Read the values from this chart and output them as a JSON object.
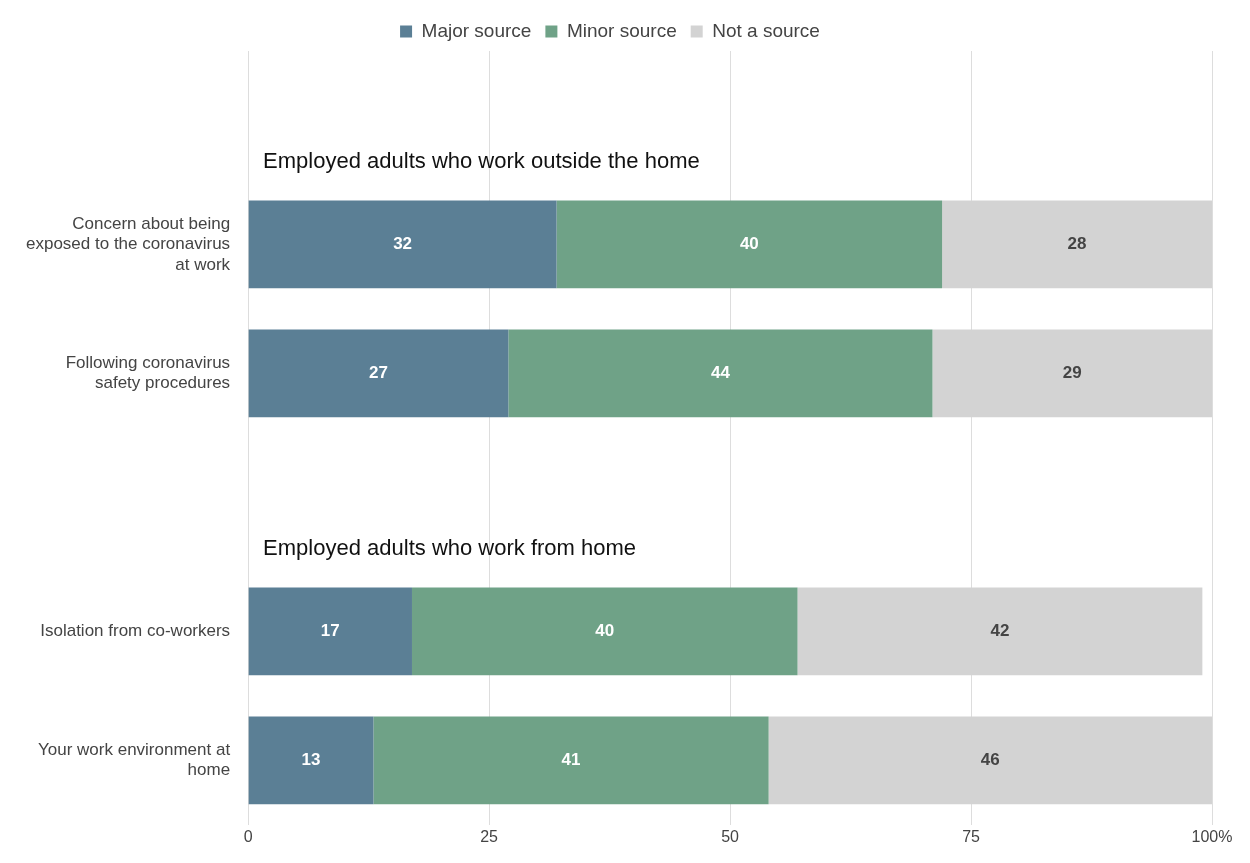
{
  "chart_data": {
    "type": "bar",
    "orientation": "horizontal",
    "stacked": true,
    "categories": [
      null,
      "Concern about being exposed to the coronavirus at work",
      "Following coronavirus safety procedures",
      null,
      "Isolation from co-workers",
      "Your work environment at home"
    ],
    "series": [
      {
        "name": "Major source",
        "color": "#5b7f95",
        "values": [
          null,
          32,
          27,
          null,
          17,
          13
        ]
      },
      {
        "name": "Minor source",
        "color": "#6fa287",
        "values": [
          null,
          40,
          44,
          null,
          40,
          41
        ]
      },
      {
        "name": "Not a source",
        "color": "#d3d3d3",
        "values": [
          null,
          28,
          29,
          null,
          42,
          46
        ]
      }
    ],
    "xlim": [
      0,
      100
    ],
    "xticks": [
      0,
      25,
      50,
      75,
      {
        "value": 100,
        "label": "100%"
      }
    ],
    "grid": "x",
    "legend": "top",
    "data_labels": true,
    "annotations": [
      "Employed adults who work outside the home",
      "Employed adults who work from home"
    ]
  }
}
